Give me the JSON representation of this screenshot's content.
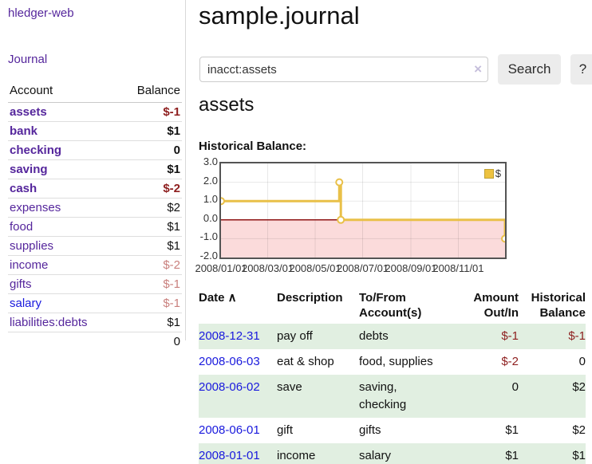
{
  "app": {
    "brand": "hledger-web"
  },
  "sidebar": {
    "journal_link": "Journal",
    "accounts_table": {
      "account_header": "Account",
      "balance_header": "Balance",
      "rows": [
        {
          "label": "assets",
          "indent": 1,
          "bold": true,
          "balance": "$-1",
          "balance_class": "neg",
          "link_color": "purple"
        },
        {
          "label": "bank",
          "indent": 2,
          "bold": true,
          "balance": "$1",
          "balance_class": "",
          "link_color": "purple"
        },
        {
          "label": "checking",
          "indent": 3,
          "bold": true,
          "balance": "0",
          "balance_class": "",
          "link_color": "purple"
        },
        {
          "label": "saving",
          "indent": 3,
          "bold": true,
          "balance": "$1",
          "balance_class": "",
          "link_color": "purple"
        },
        {
          "label": "cash",
          "indent": 2,
          "bold": true,
          "balance": "$-2",
          "balance_class": "neg",
          "link_color": "purple"
        },
        {
          "label": "expenses",
          "indent": 1,
          "bold": false,
          "balance": "$2",
          "balance_class": "",
          "link_color": "purple"
        },
        {
          "label": "food",
          "indent": 2,
          "bold": false,
          "balance": "$1",
          "balance_class": "",
          "link_color": "purple"
        },
        {
          "label": "supplies",
          "indent": 2,
          "bold": false,
          "balance": "$1",
          "balance_class": "",
          "link_color": "purple"
        },
        {
          "label": "income",
          "indent": 1,
          "bold": false,
          "balance": "$-2",
          "balance_class": "neg-light",
          "link_color": "purple"
        },
        {
          "label": "gifts",
          "indent": 2,
          "bold": false,
          "balance": "$-1",
          "balance_class": "neg-light",
          "link_color": "purple"
        },
        {
          "label": "salary",
          "indent": 2,
          "bold": false,
          "balance": "$-1",
          "balance_class": "neg-light",
          "link_color": "blue"
        },
        {
          "label": "liabilities:debts",
          "indent": 1,
          "bold": false,
          "balance": "$1",
          "balance_class": "",
          "link_color": "purple"
        }
      ],
      "total": "0"
    }
  },
  "main": {
    "title": "sample.journal",
    "search": {
      "value": "inacct:assets",
      "clear_icon": "×",
      "search_button": "Search",
      "help_button": "?"
    },
    "account_heading": "assets",
    "chart_label": "Historical Balance:",
    "register_table": {
      "headers": [
        {
          "lines": [
            "Date"
          ],
          "align": "left",
          "sortable": true
        },
        {
          "lines": [
            "Description"
          ],
          "align": "left"
        },
        {
          "lines": [
            "To/From",
            "Account(s)"
          ],
          "align": "left"
        },
        {
          "lines": [
            "Amount",
            "Out/In"
          ],
          "align": "right"
        },
        {
          "lines": [
            "Historical",
            "Balance"
          ],
          "align": "right"
        }
      ],
      "sort_icon": "∧",
      "rows": [
        {
          "date": "2008-12-31",
          "description": "pay off",
          "accounts": "debts",
          "amount": "$-1",
          "amount_negative": true,
          "balance": "$-1",
          "balance_negative": true,
          "shaded": true
        },
        {
          "date": "2008-06-03",
          "description": "eat & shop",
          "accounts": "food, supplies",
          "amount": "$-2",
          "amount_negative": true,
          "balance": "0",
          "balance_negative": false,
          "shaded": false
        },
        {
          "date": "2008-06-02",
          "description": "save",
          "accounts": "saving,\ncheckin g",
          "amount": "0",
          "amount_negative": false,
          "balance": "$2",
          "balance_negative": false,
          "shaded": true
        },
        {
          "date": "2008-06-01",
          "description": "gift",
          "accounts": "gifts",
          "amount": "$1",
          "amount_negative": false,
          "balance": "$2",
          "balance_negative": false,
          "shaded": false
        },
        {
          "date": "2008-01-01",
          "description": "income",
          "accounts": "salary",
          "amount": "$1",
          "amount_negative": false,
          "balance": "$1",
          "balance_negative": false,
          "shaded": true
        }
      ]
    }
  },
  "chart_data": {
    "type": "line",
    "title": "Historical Balance",
    "step": true,
    "series": [
      {
        "name": "$",
        "color": "#e9c048",
        "points": [
          [
            "2008-01-01",
            1
          ],
          [
            "2008-06-01",
            2
          ],
          [
            "2008-06-03",
            0
          ],
          [
            "2008-12-31",
            -1
          ]
        ]
      }
    ],
    "x_ticks": [
      "2008/01/01",
      "2008/03/01",
      "2008/05/01",
      "2008/07/01",
      "2008/09/01",
      "2008/11/01"
    ],
    "y_ticks": [
      3.0,
      2.0,
      1.0,
      0.0,
      -1.0,
      -2.0
    ],
    "ylim": [
      -2,
      3
    ],
    "x_start": "2008-01-01",
    "x_span_days": 365,
    "legend_label": "$",
    "legend_position": "top-right",
    "grid": true,
    "negative_region_color": "#fbdbdb",
    "zero_line_color": "#8e1414"
  },
  "colors": {
    "link_purple": "#55269c",
    "link_blue": "#1919dd",
    "negative_dark": "#8e1f1f",
    "negative_light": "#c9807d",
    "row_stripe_green": "#e1efe1",
    "series_gold": "#e9c048"
  }
}
